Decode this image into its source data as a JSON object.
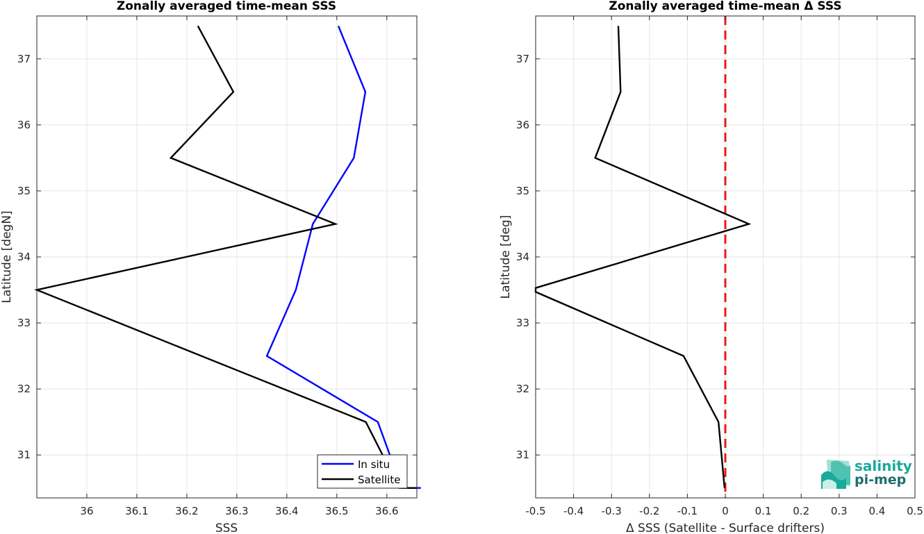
{
  "chart_data": [
    {
      "type": "line",
      "title": "Zonally averaged time-mean SSS",
      "xlabel": "SSS",
      "ylabel": "Latitude [degN]",
      "xlim": [
        35.9,
        36.66
      ],
      "ylim": [
        30.35,
        37.65
      ],
      "x_ticks": [
        36,
        36.1,
        36.2,
        36.3,
        36.4,
        36.5,
        36.6
      ],
      "x_tick_labels": [
        "36",
        "36.1",
        "36.2",
        "36.3",
        "36.4",
        "36.5",
        "36.6"
      ],
      "y_ticks": [
        31,
        32,
        33,
        34,
        35,
        36,
        37
      ],
      "y_tick_labels": [
        "31",
        "32",
        "33",
        "34",
        "35",
        "36",
        "37"
      ],
      "grid": true,
      "legend_position": "bottom-right",
      "series": [
        {
          "name": "In situ",
          "color": "#0000ff",
          "x": [
            36.668,
            36.63,
            36.582,
            36.36,
            36.418,
            36.452,
            36.534,
            36.557,
            36.503
          ],
          "y": [
            30.5,
            30.5,
            31.5,
            32.5,
            33.5,
            34.5,
            35.5,
            36.5,
            37.5
          ]
        },
        {
          "name": "Satellite",
          "color": "#000000",
          "x": [
            36.66,
            36.625,
            36.558,
            35.9,
            36.497,
            36.168,
            36.293,
            36.222
          ],
          "y": [
            30.5,
            30.5,
            31.5,
            33.5,
            34.5,
            35.5,
            36.5,
            37.5
          ]
        }
      ]
    },
    {
      "type": "line",
      "title": "Zonally averaged time-mean Δ SSS",
      "xlabel": "Δ SSS (Satellite - Surface drifters)",
      "ylabel": "Latitude [deg]",
      "xlim": [
        -0.5,
        0.5
      ],
      "ylim": [
        30.35,
        37.65
      ],
      "x_ticks": [
        -0.5,
        -0.4,
        -0.3,
        -0.2,
        -0.1,
        0,
        0.1,
        0.2,
        0.3,
        0.4,
        0.5
      ],
      "x_tick_labels": [
        "-0.5",
        "-0.4",
        "-0.3",
        "-0.2",
        "-0.1",
        "0",
        "0.1",
        "0.2",
        "0.3",
        "0.4",
        "0.5"
      ],
      "y_ticks": [
        31,
        32,
        33,
        34,
        35,
        36,
        37
      ],
      "y_tick_labels": [
        "31",
        "32",
        "33",
        "34",
        "35",
        "36",
        "37"
      ],
      "grid": true,
      "zero_line_color": "#e8191c",
      "series": [
        {
          "color": "#000000",
          "x": [
            -0.002,
            -0.018,
            -0.11,
            -0.5,
            -0.5,
            0.062,
            -0.343,
            -0.276,
            -0.282
          ],
          "y": [
            30.5,
            31.5,
            32.5,
            33.47,
            33.53,
            34.5,
            35.5,
            36.5,
            37.5
          ]
        }
      ]
    }
  ],
  "logo": {
    "line1": "salinity",
    "line2": "pi-mep",
    "color1": "#1aa99a",
    "color2": "#1f6e6e"
  }
}
